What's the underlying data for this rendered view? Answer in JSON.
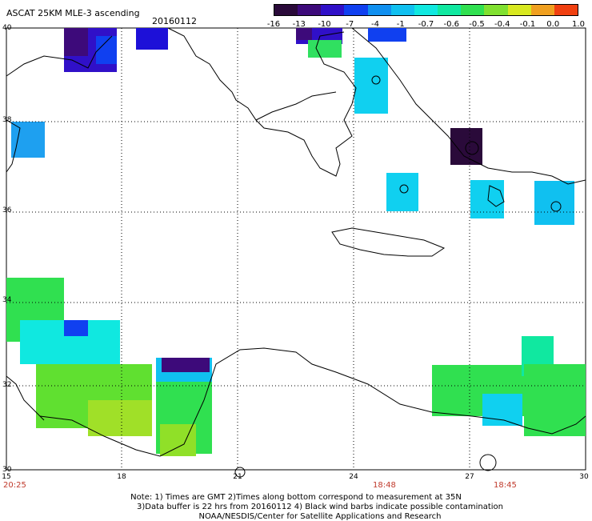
{
  "header": {
    "title": "ASCAT 25KM MLE-3 ascending",
    "date": "20160112"
  },
  "colorbar": {
    "labels": [
      "-16",
      "-13",
      "-10",
      "-7",
      "-4",
      "-1",
      "-0.7",
      "-0.6",
      "-0.5",
      "-0.4",
      "-0.1",
      "0.0",
      "1.0"
    ],
    "colors": [
      "#2a0a3a",
      "#3d0a7a",
      "#3010c8",
      "#1040f0",
      "#1090f0",
      "#10c0f0",
      "#10e8e0",
      "#10e8a0",
      "#30e050",
      "#80e030",
      "#d8e820",
      "#f0a020",
      "#f04010"
    ]
  },
  "axes": {
    "lat_labels": [
      "40",
      "38",
      "36",
      "34",
      "32",
      "30"
    ],
    "lon_labels": [
      "15",
      "18",
      "21",
      "24",
      "27",
      "30"
    ]
  },
  "time_labels": [
    "20:25",
    "18:48",
    "18:45"
  ],
  "notes": {
    "line1": "Note: 1) Times are GMT 2)Times along bottom correspond to measurement at 35N",
    "line2": "3)Data buffer is 22 hrs from 20160112 4) Black wind barbs indicate possible contamination",
    "line3": "NOAA/NESDIS/Center for Satellite Applications and Research"
  }
}
